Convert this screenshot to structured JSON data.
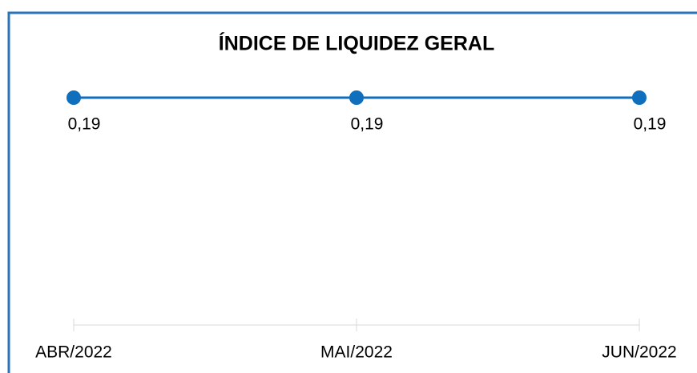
{
  "chart_data": {
    "type": "line",
    "title": "ÍNDICE DE LIQUIDEZ GERAL",
    "categories": [
      "ABR/2022",
      "MAI/2022",
      "JUN/2022"
    ],
    "series": [
      {
        "name": null,
        "color": "#0f6fbd",
        "values": [
          0.19,
          0.19,
          0.19
        ],
        "value_labels": [
          "0,19",
          "0,19",
          "0,19"
        ]
      }
    ]
  }
}
